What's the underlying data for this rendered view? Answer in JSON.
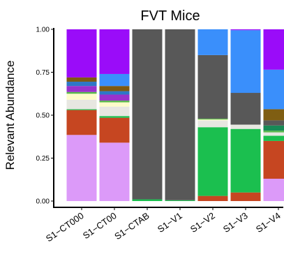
{
  "chart_data": {
    "type": "bar",
    "stacked": true,
    "normalized": true,
    "title": "FVT Mice",
    "xlabel": "",
    "ylabel": "Relevant Abundance",
    "ylim": [
      0,
      1
    ],
    "yticks": [
      "0.00",
      "0.25",
      "0.50",
      "0.75",
      "1.00"
    ],
    "ytick_values": [
      0,
      0.25,
      0.5,
      0.75,
      1
    ],
    "grid": false,
    "legend": "none",
    "categories": [
      "S1−CT000",
      "S1−CT00",
      "S1−CTAB",
      "S1−V1",
      "S1−V2",
      "S1−V3",
      "S1−V4"
    ],
    "series": [
      {
        "color": "#dc9af9",
        "values": [
          0.385,
          0.34,
          0.0,
          0.0,
          0.0,
          0.0,
          0.13
        ]
      },
      {
        "color": "#c64621",
        "values": [
          0.145,
          0.145,
          0.0,
          0.0,
          0.03,
          0.05,
          0.22
        ]
      },
      {
        "color": "#1bbf4f",
        "values": [
          0.005,
          0.01,
          0.01,
          0.005,
          0.4,
          0.37,
          0.03
        ]
      },
      {
        "color": "#e7e7e1",
        "values": [
          0.055,
          0.055,
          0.0,
          0.0,
          0.04,
          0.025,
          0.02
        ]
      },
      {
        "color": "#fdfcc9",
        "values": [
          0.035,
          0.025,
          0.0,
          0.0,
          0.005,
          0.0,
          0.0
        ]
      },
      {
        "color": "#56b84a",
        "values": [
          0.01,
          0.01,
          0.0,
          0.0,
          0.005,
          0.0,
          0.01
        ]
      },
      {
        "color": "#178a56",
        "values": [
          0.0,
          0.0,
          0.0,
          0.0,
          0.0,
          0.0,
          0.03
        ]
      },
      {
        "color": "#585858",
        "values": [
          0.0,
          0.0,
          0.99,
          0.995,
          0.37,
          0.185,
          0.03
        ]
      },
      {
        "color": "#7f5e12",
        "values": [
          0.0,
          0.0,
          0.0,
          0.0,
          0.0,
          0.0,
          0.065
        ]
      },
      {
        "color": "#9932cc",
        "values": [
          0.035,
          0.035,
          0.0,
          0.0,
          0.0,
          0.0,
          0.0
        ]
      },
      {
        "color": "#2e77c6",
        "values": [
          0.025,
          0.02,
          0.0,
          0.0,
          0.0,
          0.0,
          0.0
        ]
      },
      {
        "color": "#7e5912",
        "values": [
          0.025,
          0.03,
          0.0,
          0.0,
          0.0,
          0.0,
          0.0
        ]
      },
      {
        "color": "#3a8ffb",
        "values": [
          0.0,
          0.07,
          0.0,
          0.0,
          0.15,
          0.365,
          0.23
        ]
      },
      {
        "color": "#9a0cf9",
        "values": [
          0.28,
          0.26,
          0.0,
          0.0,
          0.0,
          0.005,
          0.235
        ]
      }
    ]
  }
}
